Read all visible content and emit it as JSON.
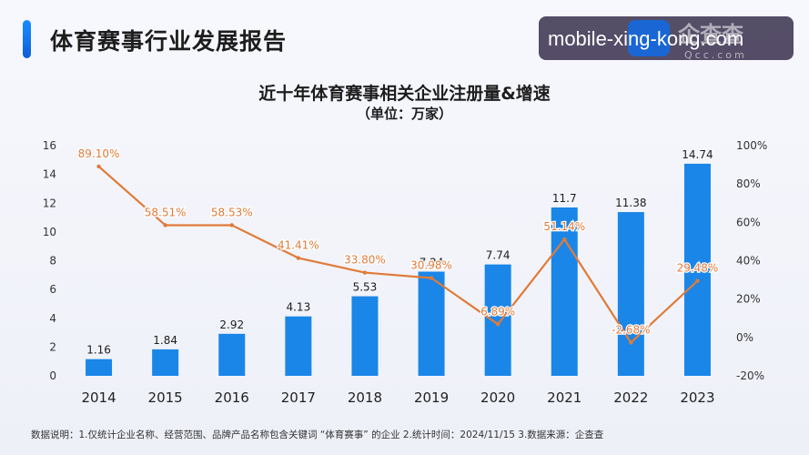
{
  "header": {
    "title": "体育赛事行业发展报告"
  },
  "watermark": {
    "overlay_text": "mobile-xing-kong.com",
    "brand_text": "企查查",
    "brand_domain": "Qcc.com"
  },
  "chart_data": {
    "type": "bar",
    "title": "近十年体育赛事相关企业注册量&增速",
    "subtitle": "（单位：万家）",
    "categories": [
      "2014",
      "2015",
      "2016",
      "2017",
      "2018",
      "2019",
      "2020",
      "2021",
      "2022",
      "2023"
    ],
    "series": [
      {
        "type": "bar",
        "axis": "left",
        "values": [
          1.16,
          1.84,
          2.92,
          4.13,
          5.53,
          7.24,
          7.74,
          11.7,
          11.38,
          14.74
        ],
        "labels": [
          "1.16",
          "1.84",
          "2.92",
          "4.13",
          "5.53",
          "7.24",
          "7.74",
          "11.7",
          "11.38",
          "14.74"
        ],
        "color": "#1a86e8"
      },
      {
        "type": "line",
        "axis": "right",
        "values": [
          89.1,
          58.51,
          58.53,
          41.41,
          33.8,
          30.98,
          6.89,
          51.14,
          -2.68,
          29.48
        ],
        "labels": [
          "89.10%",
          "58.51%",
          "58.53%",
          "41.41%",
          "33.80%",
          "30.98%",
          "6.89%",
          "51.14%",
          "-2.68%",
          "29.48%"
        ],
        "color": "#e07b39"
      }
    ],
    "y_left": {
      "min": 0,
      "max": 16,
      "ticks": [
        "0",
        "2",
        "4",
        "6",
        "8",
        "10",
        "12",
        "14",
        "16"
      ]
    },
    "y_right": {
      "min": -20,
      "max": 100,
      "ticks": [
        "-20%",
        "0%",
        "20%",
        "40%",
        "60%",
        "80%",
        "100%"
      ]
    },
    "grid": false,
    "legend": "none"
  },
  "footer": {
    "note": "数据说明：1.仅统计企业名称、经营范围、品牌产品名称包含关键词 “体育赛事” 的企业  2.统计时间：2024/11/15  3.数据来源：企查查"
  }
}
